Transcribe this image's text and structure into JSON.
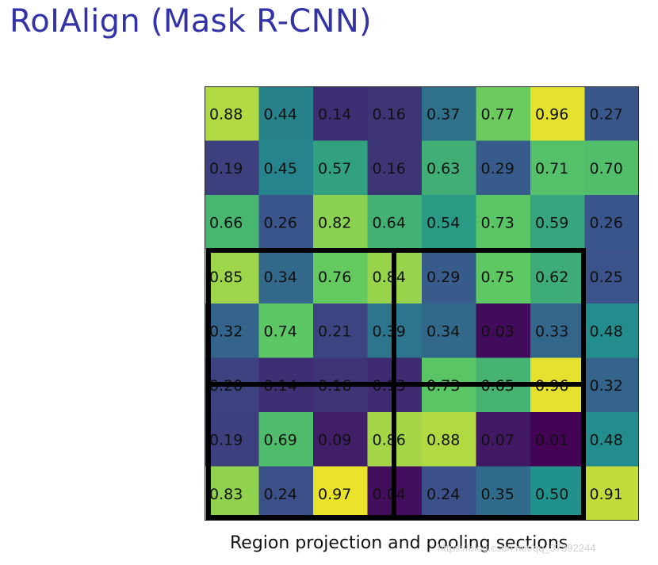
{
  "title": "RoIAlign (Mask R-CNN)",
  "caption": "Region projection and pooling sections",
  "watermark": "https://blog.csdn.net/qq_37392244",
  "grid": {
    "rows": [
      [
        "0.88",
        "0.44",
        "0.14",
        "0.16",
        "0.37",
        "0.77",
        "0.96",
        "0.27"
      ],
      [
        "0.19",
        "0.45",
        "0.57",
        "0.16",
        "0.63",
        "0.29",
        "0.71",
        "0.70"
      ],
      [
        "0.66",
        "0.26",
        "0.82",
        "0.64",
        "0.54",
        "0.73",
        "0.59",
        "0.26"
      ],
      [
        "0.85",
        "0.34",
        "0.76",
        "0.84",
        "0.29",
        "0.75",
        "0.62",
        "0.25"
      ],
      [
        "0.32",
        "0.74",
        "0.21",
        "0.39",
        "0.34",
        "0.03",
        "0.33",
        "0.48"
      ],
      [
        "0.20",
        "0.14",
        "0.16",
        "0.13",
        "0.73",
        "0.65",
        "0.96",
        "0.32"
      ],
      [
        "0.19",
        "0.69",
        "0.09",
        "0.86",
        "0.88",
        "0.07",
        "0.01",
        "0.48"
      ],
      [
        "0.83",
        "0.24",
        "0.97",
        "0.04",
        "0.24",
        "0.35",
        "0.50",
        "0.91"
      ]
    ],
    "colormap": [
      "#440154",
      "#3b528b",
      "#21918c",
      "#5ec962",
      "#fde725"
    ]
  }
}
